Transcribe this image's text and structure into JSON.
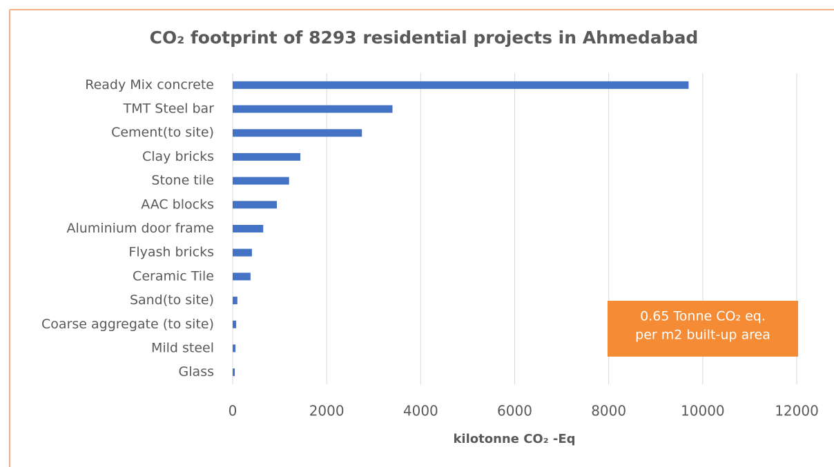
{
  "chart_data": {
    "type": "hbar",
    "title": "CO₂ footprint of 8293 residential projects in Ahmedabad",
    "x_label": "kilotonne CO₂  -Eq",
    "annotation": [
      "0.65 Tonne  CO₂ eq.",
      "per m2 built-up area"
    ],
    "categories": [
      "Ready Mix concrete",
      "TMT Steel bar",
      "Cement(to site)",
      "Clay bricks",
      "Stone tile",
      "AAC blocks",
      "Aluminium door frame",
      "Flyash bricks",
      "Ceramic Tile",
      "Sand(to site)",
      "Coarse aggregate (to site)",
      "Mild steel",
      "Glass"
    ],
    "values": [
      9700,
      3400,
      2750,
      1440,
      1200,
      940,
      650,
      410,
      380,
      100,
      75,
      60,
      45
    ],
    "color": "#4472c4",
    "xlim": [
      0,
      12000
    ],
    "xticks": [
      0,
      2000,
      4000,
      6000,
      8000,
      10000,
      12000
    ],
    "grid": true
  }
}
